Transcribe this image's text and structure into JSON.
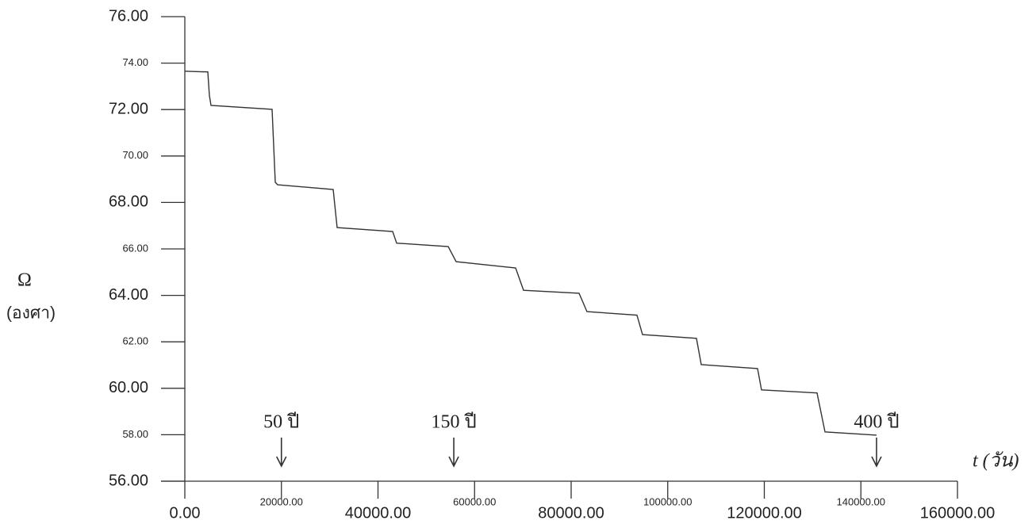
{
  "chart_data": {
    "type": "line",
    "y_label": "Ω",
    "y_unit": "(องศา)",
    "x_label": "t (วัน)",
    "x": [
      0,
      4760,
      5090,
      5420,
      18070,
      18730,
      19220,
      30720,
      31540,
      43040,
      43860,
      54540,
      56180,
      68500,
      70140,
      81640,
      83280,
      93630,
      94780,
      105950,
      106940,
      118600,
      119420,
      130920,
      132570,
      143240
    ],
    "series": [
      {
        "color": "#333333",
        "values": [
          73.65,
          73.62,
          72.6,
          72.18,
          72.01,
          68.87,
          68.76,
          68.56,
          66.92,
          66.75,
          66.25,
          66.1,
          65.45,
          65.18,
          64.22,
          64.09,
          63.3,
          63.15,
          62.31,
          62.15,
          61.02,
          60.85,
          59.93,
          59.8,
          58.12,
          57.98
        ]
      }
    ],
    "xlim": [
      0,
      160000
    ],
    "ylim": [
      56,
      76
    ],
    "xticks": [
      {
        "value": 0,
        "label": "0.00"
      },
      {
        "value": 20000,
        "label": "20000.00"
      },
      {
        "value": 40000,
        "label": "40000.00"
      },
      {
        "value": 60000,
        "label": "60000.00"
      },
      {
        "value": 80000,
        "label": "80000.00"
      },
      {
        "value": 100000,
        "label": "100000.00"
      },
      {
        "value": 120000,
        "label": "120000.00"
      },
      {
        "value": 140000,
        "label": "140000.00"
      },
      {
        "value": 160000,
        "label": "160000.00"
      }
    ],
    "yticks": [
      {
        "value": 56,
        "label": "56.00"
      },
      {
        "value": 58,
        "label": "58.00"
      },
      {
        "value": 60,
        "label": "60.00"
      },
      {
        "value": 62,
        "label": "62.00"
      },
      {
        "value": 64,
        "label": "64.00"
      },
      {
        "value": 66,
        "label": "66.00"
      },
      {
        "value": 68,
        "label": "68.00"
      },
      {
        "value": 70,
        "label": "70.00"
      },
      {
        "value": 72,
        "label": "72.00"
      },
      {
        "value": 74,
        "label": "74.00"
      },
      {
        "value": 76,
        "label": "76.00"
      }
    ],
    "annotations": [
      {
        "text": "50 ปี",
        "x": 20000
      },
      {
        "text": "150 ปี",
        "x": 55700
      },
      {
        "text": "400 ปี",
        "x": 143240
      }
    ]
  }
}
